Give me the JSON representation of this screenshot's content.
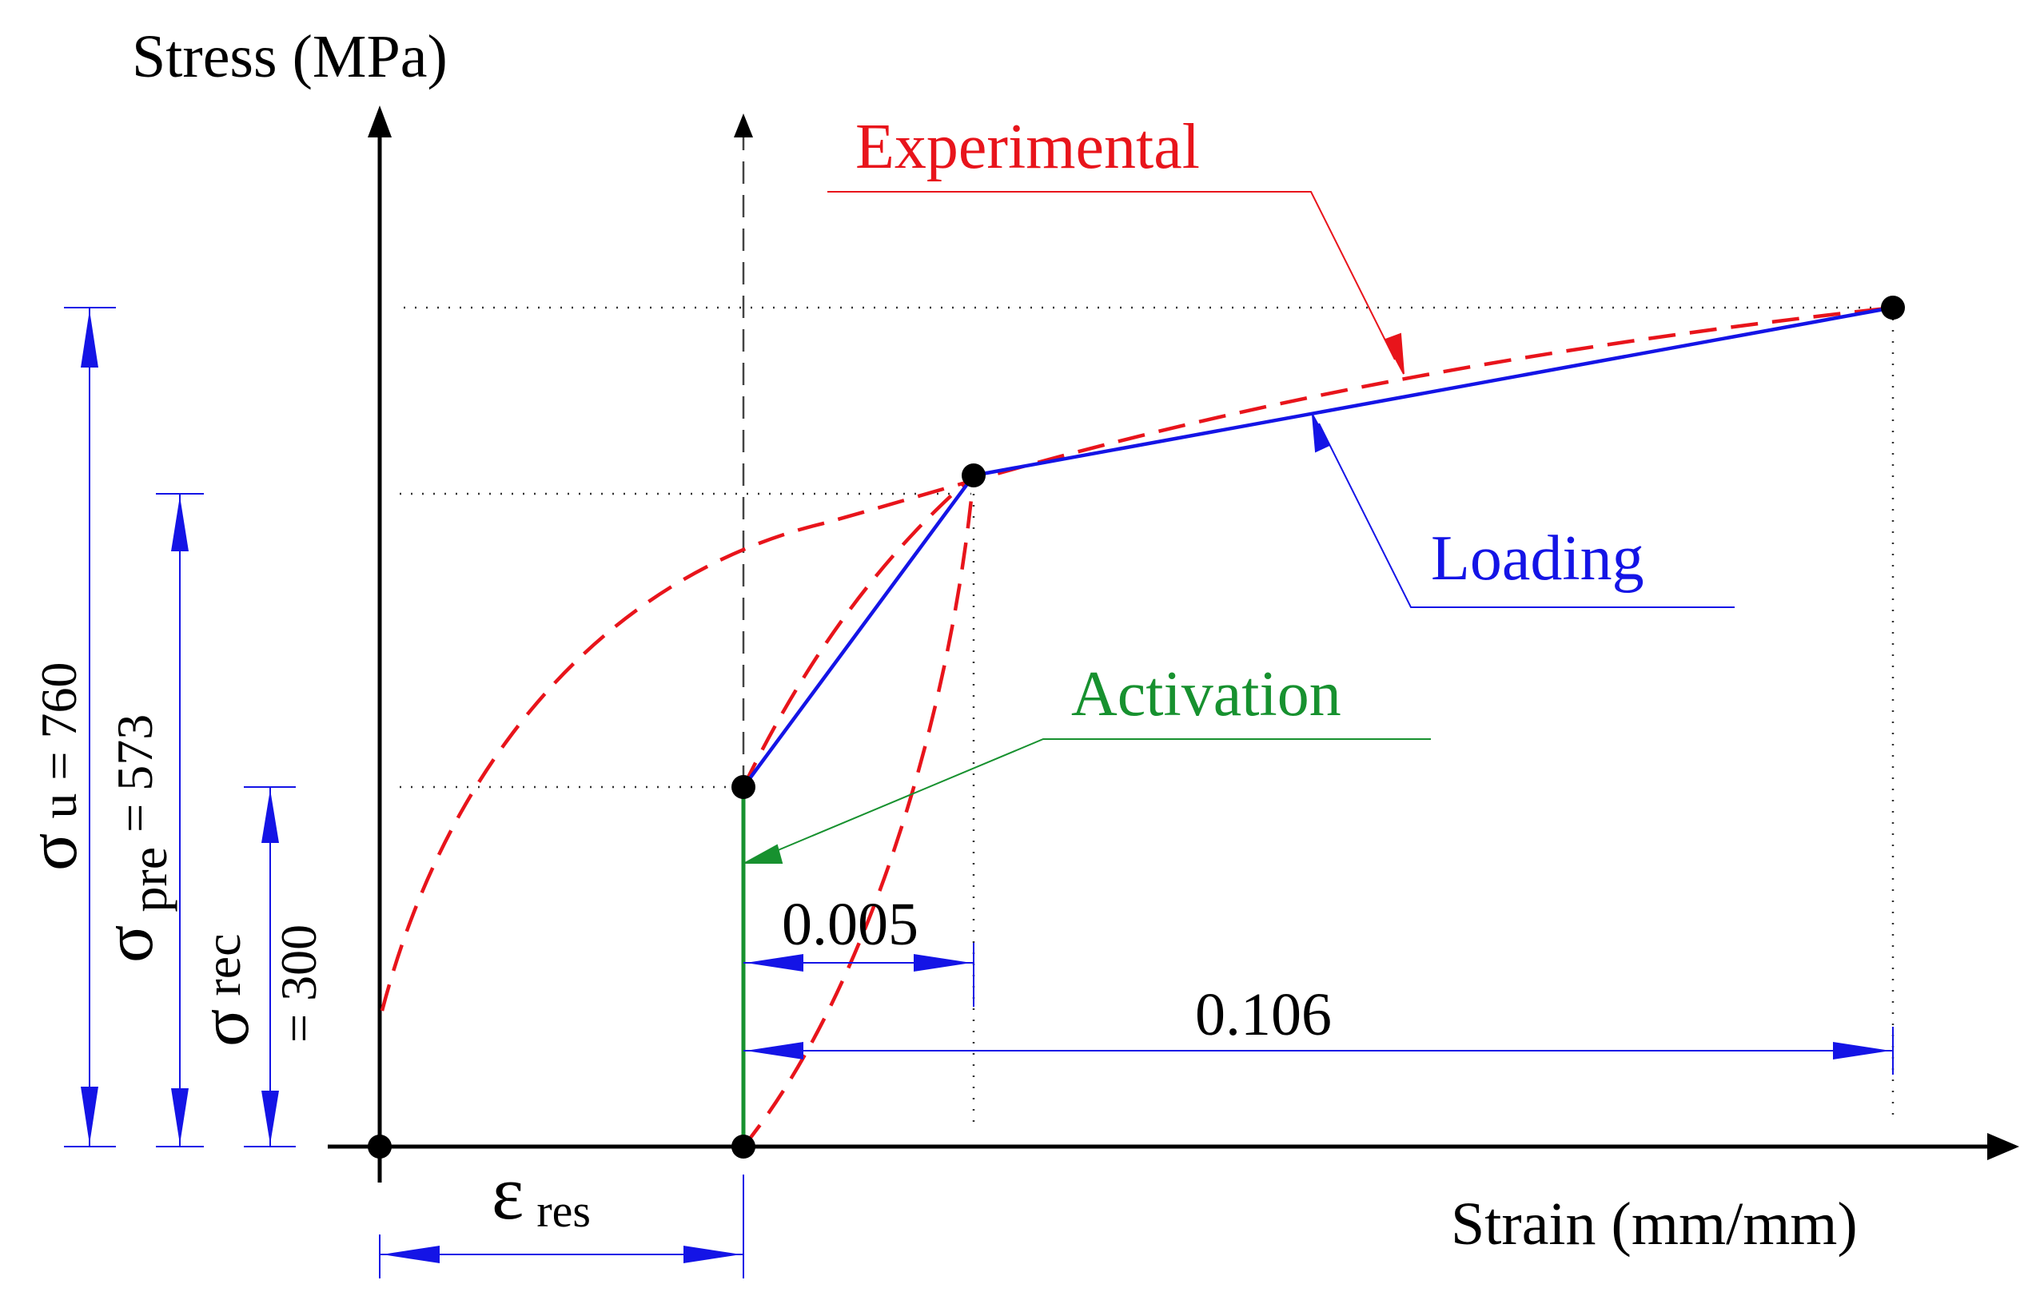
{
  "diagram": {
    "axis_labels": {
      "y": "Stress (MPa)",
      "x": "Strain (mm/mm)"
    },
    "curve_labels": {
      "experimental": "Experimental",
      "loading": "Loading",
      "activation": "Activation"
    },
    "dimensions": {
      "strain_0_005": "0.005",
      "strain_0_106": "0.106"
    },
    "stress_labels": {
      "sigma_u": {
        "symbol": "σ",
        "sub": "u",
        "value": "= 760"
      },
      "sigma_pre": {
        "symbol": "σ",
        "sub": "pre",
        "value": "= 573"
      },
      "sigma_rec": {
        "symbol": "σ",
        "sub": "rec",
        "value": "= 300"
      }
    },
    "epsilon_res": {
      "symbol": "ε",
      "sub": "res"
    },
    "colors": {
      "axis": "#000000",
      "experimental": "#e8141b",
      "loading": "#1414e6",
      "activation": "#17912f",
      "dimension": "#1414e6",
      "guide": "#333333"
    }
  }
}
